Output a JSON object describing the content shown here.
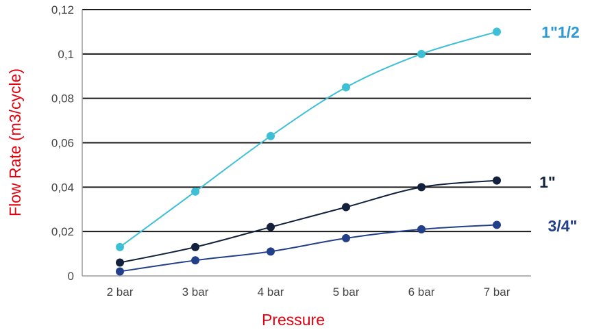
{
  "chart_data": {
    "type": "line",
    "title": "",
    "xlabel": "Pressure",
    "ylabel": "Flow Rate (m3/cycle)",
    "categories": [
      "2 bar",
      "3 bar",
      "4 bar",
      "5 bar",
      "6 bar",
      "7 bar"
    ],
    "yticks": [
      "0",
      "0,02",
      "0,04",
      "0,06",
      "0,08",
      "0,1",
      "0,12"
    ],
    "ylim": [
      0,
      0.12
    ],
    "grid": true,
    "series": [
      {
        "name": "1\"1/2",
        "color": "#3dbfd6",
        "values": [
          0.013,
          0.038,
          0.063,
          0.085,
          0.1,
          0.11
        ]
      },
      {
        "name": "1\"",
        "color": "#14213d",
        "values": [
          0.006,
          0.013,
          0.022,
          0.031,
          0.04,
          0.043
        ]
      },
      {
        "name": "3/4\"",
        "color": "#223f8a",
        "values": [
          0.002,
          0.007,
          0.011,
          0.017,
          0.021,
          0.023
        ]
      }
    ],
    "label_colors": {
      "1\"1/2": "#2b9ad6",
      "1\"": "#14213d",
      "3/4\"": "#223f8a"
    }
  }
}
